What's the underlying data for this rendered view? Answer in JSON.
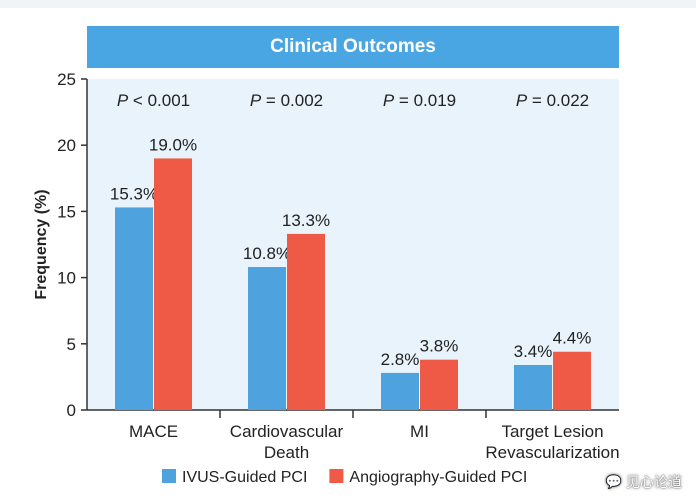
{
  "chart_data": {
    "type": "bar",
    "title": "Clinical Outcomes",
    "ylabel": "Frequency (%)",
    "xlabel": "",
    "ylim": [
      0,
      25
    ],
    "yticks": [
      0,
      5,
      10,
      15,
      20,
      25
    ],
    "categories": [
      [
        "MACE"
      ],
      [
        "Cardiovascular",
        "Death"
      ],
      [
        "MI"
      ],
      [
        "Target Lesion",
        "Revascularization"
      ]
    ],
    "series": [
      {
        "name": "IVUS-Guided PCI",
        "color": "#4ea3df",
        "values": [
          15.3,
          10.8,
          2.8,
          3.4
        ],
        "labels": [
          "15.3%",
          "10.8%",
          "2.8%",
          "3.4%"
        ]
      },
      {
        "name": "Angiography-Guided PCI",
        "color": "#ee5a45",
        "values": [
          19.0,
          13.3,
          3.8,
          4.4
        ],
        "labels": [
          "19.0%",
          "13.3%",
          "3.8%",
          "4.4%"
        ]
      }
    ],
    "annotations": [
      {
        "prefix": "P",
        "text": " < 0.001"
      },
      {
        "prefix": "P",
        "text": " = 0.002"
      },
      {
        "prefix": "P",
        "text": " = 0.019"
      },
      {
        "prefix": "P",
        "text": " = 0.022"
      }
    ],
    "plot_bg": "#e8f3fb"
  },
  "watermark": {
    "text": "见心论道",
    "icon": "chat-bubble-icon"
  }
}
